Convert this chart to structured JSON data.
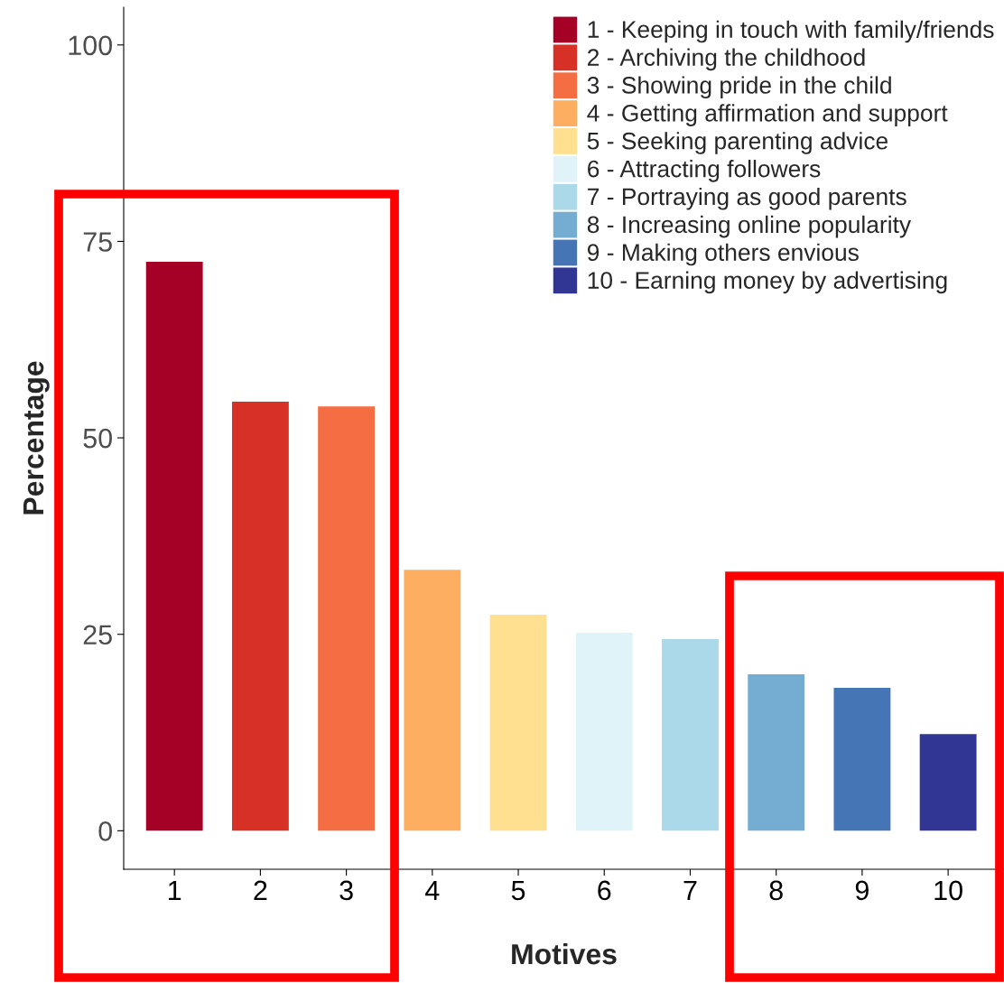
{
  "chart_data": {
    "type": "bar",
    "xlabel": "Motives",
    "ylabel": "Percentage",
    "categories": [
      "1",
      "2",
      "3",
      "4",
      "5",
      "6",
      "7",
      "8",
      "9",
      "10"
    ],
    "series": [
      {
        "name": "1 - Keeping in touch with family/friends",
        "color": "#a50026",
        "values": [
          72.4,
          null,
          null,
          null,
          null,
          null,
          null,
          null,
          null,
          null
        ]
      },
      {
        "name": "2 - Archiving the childhood",
        "color": "#d73027",
        "values": [
          null,
          54.6,
          null,
          null,
          null,
          null,
          null,
          null,
          null,
          null
        ]
      },
      {
        "name": "3 - Showing pride in the child",
        "color": "#f46d43",
        "values": [
          null,
          null,
          54.0,
          null,
          null,
          null,
          null,
          null,
          null,
          null
        ]
      },
      {
        "name": "4 - Getting affirmation and support",
        "color": "#fdae61",
        "values": [
          null,
          null,
          null,
          33.2,
          null,
          null,
          null,
          null,
          null,
          null
        ]
      },
      {
        "name": "5 - Seeking parenting advice",
        "color": "#fee090",
        "values": [
          null,
          null,
          null,
          null,
          27.5,
          null,
          null,
          null,
          null,
          null
        ]
      },
      {
        "name": "6 - Attracting followers",
        "color": "#e0f3f8",
        "values": [
          null,
          null,
          null,
          null,
          null,
          25.2,
          null,
          null,
          null,
          null
        ]
      },
      {
        "name": "7 - Portraying as good parents",
        "color": "#abd9e9",
        "values": [
          null,
          null,
          null,
          null,
          null,
          null,
          24.4,
          null,
          null,
          null
        ]
      },
      {
        "name": "8 - Increasing online popularity",
        "color": "#74add1",
        "values": [
          null,
          null,
          null,
          null,
          null,
          null,
          null,
          19.9,
          null,
          null
        ]
      },
      {
        "name": "9 - Making others envious",
        "color": "#4575b4",
        "values": [
          null,
          null,
          null,
          null,
          null,
          null,
          null,
          null,
          18.2,
          null
        ]
      },
      {
        "name": "10 - Earning money by advertising",
        "color": "#313695",
        "values": [
          null,
          null,
          null,
          null,
          null,
          null,
          null,
          null,
          null,
          12.3
        ]
      }
    ],
    "ylim": [
      -4.9,
      104.8
    ],
    "yticks": [
      0,
      25,
      50,
      75,
      100
    ],
    "grid": false,
    "legend": "top right"
  }
}
